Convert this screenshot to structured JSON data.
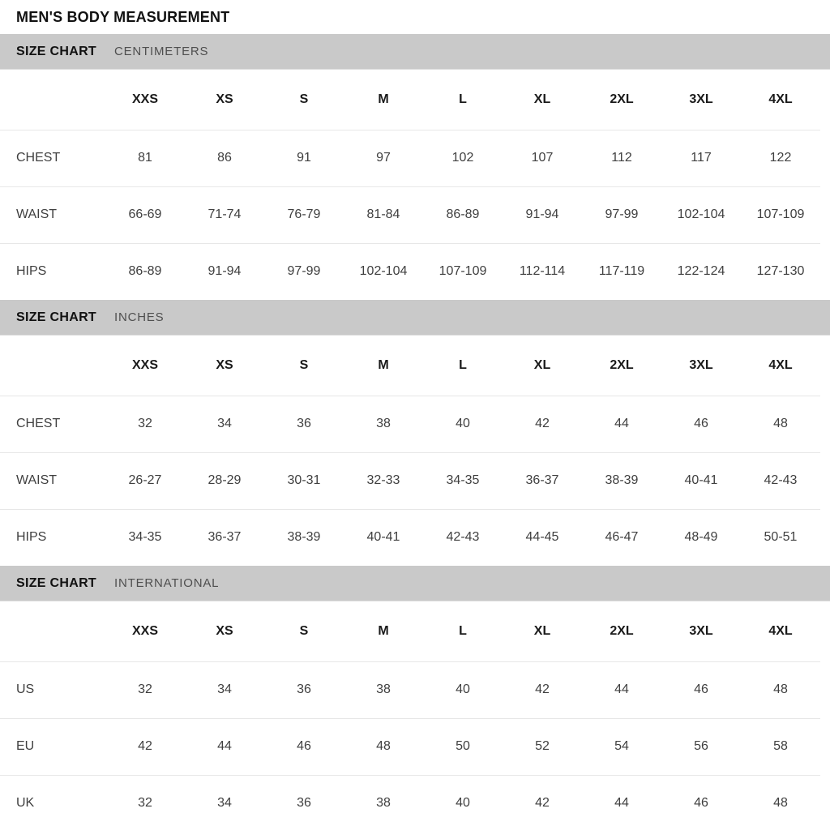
{
  "page_title": "MEN'S BODY MEASUREMENT",
  "colors": {
    "page_bg": "#ffffff",
    "section_bar_bg": "#c9c9c9",
    "heading_text": "#111111",
    "subtitle_text": "#4f4f4f",
    "value_text": "#3f3f3f",
    "separator": "#e7e7e7"
  },
  "sizes": [
    "XXS",
    "XS",
    "S",
    "M",
    "L",
    "XL",
    "2XL",
    "3XL",
    "4XL"
  ],
  "sections": [
    {
      "label": "SIZE CHART",
      "unit": "CENTIMETERS",
      "rows": [
        {
          "label": "CHEST",
          "values": [
            "81",
            "86",
            "91",
            "97",
            "102",
            "107",
            "112",
            "117",
            "122"
          ]
        },
        {
          "label": "WAIST",
          "values": [
            "66-69",
            "71-74",
            "76-79",
            "81-84",
            "86-89",
            "91-94",
            "97-99",
            "102-104",
            "107-109"
          ]
        },
        {
          "label": "HIPS",
          "values": [
            "86-89",
            "91-94",
            "97-99",
            "102-104",
            "107-109",
            "112-114",
            "117-119",
            "122-124",
            "127-130"
          ]
        }
      ]
    },
    {
      "label": "SIZE CHART",
      "unit": "INCHES",
      "rows": [
        {
          "label": "CHEST",
          "values": [
            "32",
            "34",
            "36",
            "38",
            "40",
            "42",
            "44",
            "46",
            "48"
          ]
        },
        {
          "label": "WAIST",
          "values": [
            "26-27",
            "28-29",
            "30-31",
            "32-33",
            "34-35",
            "36-37",
            "38-39",
            "40-41",
            "42-43"
          ]
        },
        {
          "label": "HIPS",
          "values": [
            "34-35",
            "36-37",
            "38-39",
            "40-41",
            "42-43",
            "44-45",
            "46-47",
            "48-49",
            "50-51"
          ]
        }
      ]
    },
    {
      "label": "SIZE CHART",
      "unit": "INTERNATIONAL",
      "rows": [
        {
          "label": "US",
          "values": [
            "32",
            "34",
            "36",
            "38",
            "40",
            "42",
            "44",
            "46",
            "48"
          ]
        },
        {
          "label": "EU",
          "values": [
            "42",
            "44",
            "46",
            "48",
            "50",
            "52",
            "54",
            "56",
            "58"
          ]
        },
        {
          "label": "UK",
          "values": [
            "32",
            "34",
            "36",
            "38",
            "40",
            "42",
            "44",
            "46",
            "48"
          ]
        }
      ]
    }
  ]
}
